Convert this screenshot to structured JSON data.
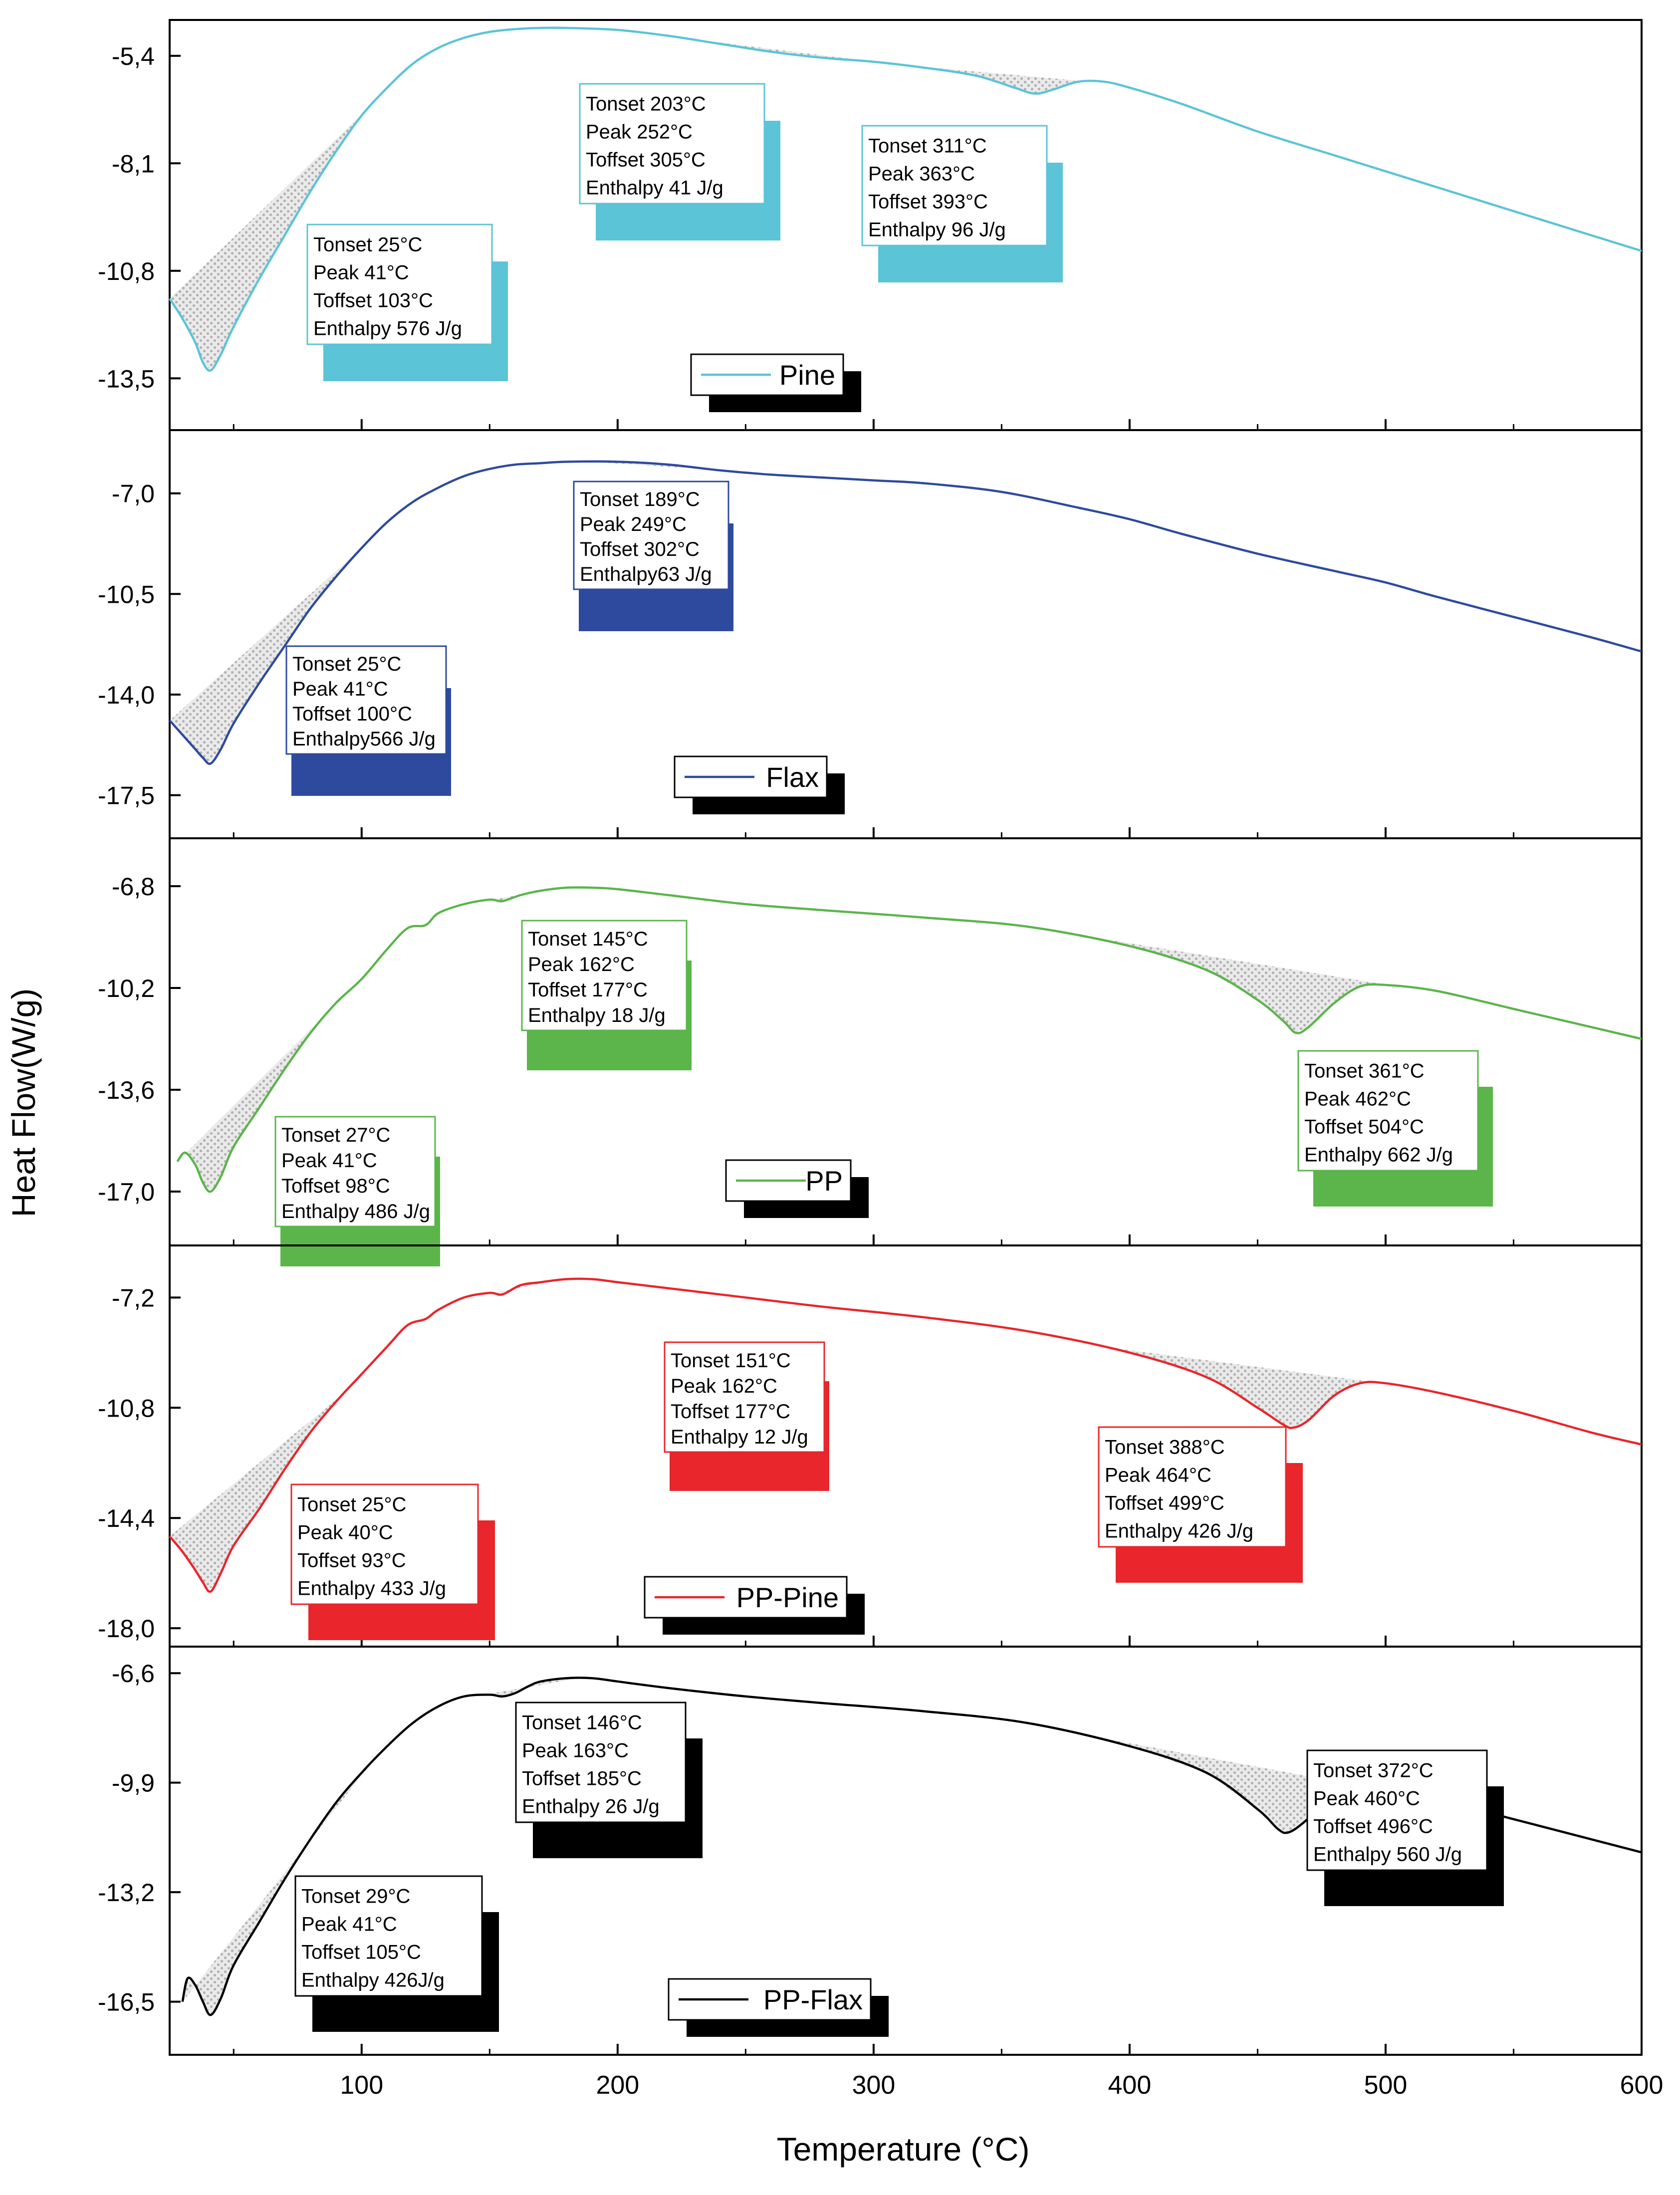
{
  "chart_data": {
    "type": "line",
    "xlabel": "Temperature (°C)",
    "ylabel": "Heat Flow(W/g)",
    "xlim": [
      25,
      600
    ],
    "xticks": [
      100,
      200,
      300,
      400,
      500,
      600
    ],
    "panels": [
      {
        "name": "Pine",
        "color": "#5bc4d6",
        "ylim": [
          -14.8,
          -4.5
        ],
        "yticks": [
          -5.4,
          -8.1,
          -10.8,
          -13.5
        ],
        "yticklabels": [
          "-5,4",
          "-8,1",
          "-10,8",
          "-13,5"
        ],
        "x": [
          25,
          30,
          35,
          38,
          41,
          45,
          50,
          60,
          70,
          80,
          90,
          100,
          110,
          120,
          130,
          140,
          150,
          160,
          170,
          180,
          200,
          220,
          240,
          260,
          280,
          300,
          320,
          340,
          355,
          363,
          370,
          380,
          390,
          400,
          420,
          450,
          480,
          500,
          520,
          550,
          580,
          600
        ],
        "y": [
          -11.5,
          -12.0,
          -12.6,
          -13.1,
          -13.3,
          -12.9,
          -12.2,
          -11.0,
          -9.9,
          -8.8,
          -7.8,
          -6.9,
          -6.2,
          -5.6,
          -5.2,
          -4.95,
          -4.8,
          -4.73,
          -4.7,
          -4.7,
          -4.75,
          -4.9,
          -5.1,
          -5.3,
          -5.45,
          -5.55,
          -5.7,
          -5.9,
          -6.2,
          -6.35,
          -6.25,
          -6.05,
          -6.05,
          -6.2,
          -6.6,
          -7.3,
          -7.9,
          -8.3,
          -8.7,
          -9.3,
          -9.9,
          -10.3
        ],
        "legend": "Pine",
        "annotations": [
          {
            "lines": [
              "Tonset 25°C",
              "Peak 41°C",
              "Toffset 103°C",
              "Enthalpy 576 J/g"
            ]
          },
          {
            "lines": [
              "Tonset 203°C",
              "Peak 252°C",
              "Toffset 305°C",
              "Enthalpy 41 J/g"
            ]
          },
          {
            "lines": [
              "Tonset 311°C",
              "Peak 363°C",
              "Toffset 393°C",
              "Enthalpy 96 J/g"
            ]
          }
        ]
      },
      {
        "name": "Flax",
        "color": "#2e4a9e",
        "ylim": [
          -19.0,
          -4.8
        ],
        "yticks": [
          -7.0,
          -10.5,
          -14.0,
          -17.5
        ],
        "yticklabels": [
          "-7,0",
          "-10,5",
          "-14,0",
          "-17,5"
        ],
        "x": [
          25,
          30,
          35,
          38,
          41,
          45,
          50,
          60,
          70,
          80,
          90,
          100,
          110,
          120,
          130,
          140,
          150,
          160,
          170,
          180,
          200,
          220,
          240,
          260,
          280,
          300,
          320,
          350,
          380,
          400,
          420,
          450,
          480,
          500,
          520,
          550,
          580,
          600
        ],
        "y": [
          -14.9,
          -15.4,
          -15.9,
          -16.2,
          -16.4,
          -15.9,
          -15.0,
          -13.6,
          -12.3,
          -11.0,
          -9.9,
          -8.9,
          -8.0,
          -7.3,
          -6.8,
          -6.4,
          -6.15,
          -6.0,
          -5.95,
          -5.9,
          -5.9,
          -6.0,
          -6.2,
          -6.35,
          -6.45,
          -6.55,
          -6.65,
          -6.95,
          -7.5,
          -7.9,
          -8.4,
          -9.1,
          -9.7,
          -10.1,
          -10.6,
          -11.3,
          -12.0,
          -12.5
        ],
        "legend": "Flax",
        "annotations": [
          {
            "lines": [
              "Tonset 25°C",
              "Peak 41°C",
              "Toffset 100°C",
              "Enthalpy566 J/g"
            ]
          },
          {
            "lines": [
              "Tonset 189°C",
              "Peak 249°C",
              "Toffset 302°C",
              "Enthalpy63 J/g"
            ]
          }
        ]
      },
      {
        "name": "PP",
        "color": "#5bb54a",
        "ylim": [
          -18.8,
          -5.2
        ],
        "yticks": [
          -6.8,
          -10.2,
          -13.6,
          -17.0
        ],
        "yticklabels": [
          "-6,8",
          "-10,2",
          "-13,6",
          "-17,0"
        ],
        "x": [
          28,
          31,
          35,
          38,
          41,
          45,
          50,
          60,
          70,
          80,
          90,
          100,
          110,
          118,
          125,
          130,
          140,
          150,
          155,
          162,
          170,
          180,
          190,
          200,
          220,
          250,
          280,
          320,
          360,
          400,
          430,
          450,
          460,
          465,
          470,
          480,
          490,
          500,
          520,
          550,
          580,
          600
        ],
        "y": [
          -16.0,
          -15.7,
          -16.1,
          -16.7,
          -17.0,
          -16.5,
          -15.5,
          -14.2,
          -12.9,
          -11.7,
          -10.7,
          -9.9,
          -8.9,
          -8.2,
          -8.1,
          -7.7,
          -7.4,
          -7.25,
          -7.3,
          -7.1,
          -6.95,
          -6.85,
          -6.85,
          -6.9,
          -7.1,
          -7.4,
          -7.6,
          -7.85,
          -8.15,
          -8.8,
          -9.6,
          -10.6,
          -11.3,
          -11.7,
          -11.5,
          -10.7,
          -10.15,
          -10.1,
          -10.3,
          -10.9,
          -11.5,
          -11.9
        ],
        "legend": "PP",
        "annotations": [
          {
            "lines": [
              "Tonset 27°C",
              "Peak 41°C",
              "Toffset 98°C",
              "Enthalpy 486 J/g"
            ]
          },
          {
            "lines": [
              "Tonset 145°C",
              "Peak 162°C",
              "Toffset 177°C",
              "Enthalpy 18 J/g"
            ]
          },
          {
            "lines": [
              "Tonset 361°C",
              "Peak 462°C",
              "Toffset 504°C",
              "Enthalpy 662 J/g"
            ]
          }
        ]
      },
      {
        "name": "PP-Pine",
        "color": "#e8262b",
        "ylim": [
          -18.6,
          -5.5
        ],
        "yticks": [
          -7.2,
          -10.8,
          -14.4,
          -18.0
        ],
        "yticklabels": [
          "-7,2",
          "-10,8",
          "-14,4",
          "-18,0"
        ],
        "x": [
          25,
          30,
          35,
          38,
          41,
          45,
          50,
          60,
          70,
          80,
          90,
          100,
          110,
          118,
          125,
          130,
          140,
          150,
          155,
          162,
          170,
          180,
          190,
          200,
          220,
          250,
          280,
          320,
          360,
          400,
          430,
          450,
          460,
          464,
          470,
          480,
          490,
          500,
          520,
          550,
          580,
          600
        ],
        "y": [
          -15.0,
          -15.5,
          -16.1,
          -16.5,
          -16.8,
          -16.2,
          -15.3,
          -14.1,
          -12.8,
          -11.6,
          -10.6,
          -9.7,
          -8.8,
          -8.1,
          -7.9,
          -7.6,
          -7.2,
          -7.05,
          -7.1,
          -6.8,
          -6.7,
          -6.6,
          -6.6,
          -6.7,
          -6.9,
          -7.2,
          -7.5,
          -7.85,
          -8.3,
          -9.0,
          -9.8,
          -10.8,
          -11.35,
          -11.45,
          -11.2,
          -10.4,
          -10.0,
          -10.0,
          -10.3,
          -10.9,
          -11.6,
          -12.0
        ],
        "legend": "PP-Pine",
        "annotations": [
          {
            "lines": [
              "Tonset 25°C",
              "Peak 40°C",
              "Toffset 93°C",
              "Enthalpy 433 J/g"
            ]
          },
          {
            "lines": [
              "Tonset 151°C",
              "Peak 162°C",
              "Toffset 177°C",
              "Enthalpy 12 J/g"
            ]
          },
          {
            "lines": [
              "Tonset 388°C",
              "Peak 464°C",
              "Toffset 499°C",
              "Enthalpy 426 J/g"
            ]
          }
        ]
      },
      {
        "name": "PP-Flax",
        "color": "#000000",
        "ylim": [
          -18.1,
          -5.8
        ],
        "yticks": [
          -6.6,
          -9.9,
          -13.2,
          -16.5
        ],
        "yticklabels": [
          "-6,6",
          "-9,9",
          "-13,2",
          "-16,5"
        ],
        "x": [
          30,
          32,
          35,
          38,
          41,
          45,
          50,
          60,
          70,
          80,
          90,
          100,
          110,
          120,
          130,
          140,
          150,
          155,
          160,
          165,
          170,
          180,
          190,
          200,
          220,
          250,
          280,
          320,
          360,
          400,
          430,
          450,
          458,
          462,
          468,
          478,
          490,
          500,
          520,
          550,
          580,
          600
        ],
        "y": [
          -16.5,
          -15.8,
          -16.0,
          -16.5,
          -16.9,
          -16.4,
          -15.4,
          -14.1,
          -12.8,
          -11.6,
          -10.5,
          -9.6,
          -8.8,
          -8.1,
          -7.6,
          -7.3,
          -7.25,
          -7.3,
          -7.2,
          -7.0,
          -6.85,
          -6.75,
          -6.75,
          -6.85,
          -7.05,
          -7.3,
          -7.5,
          -7.75,
          -8.1,
          -8.8,
          -9.6,
          -10.7,
          -11.3,
          -11.4,
          -11.1,
          -10.4,
          -10.05,
          -10.1,
          -10.4,
          -11.0,
          -11.6,
          -12.0
        ],
        "legend": "PP-Flax",
        "annotations": [
          {
            "lines": [
              "Tonset 29°C",
              "Peak 41°C",
              "Toffset 105°C",
              "Enthalpy  426J/g"
            ]
          },
          {
            "lines": [
              "Tonset 146°C",
              "Peak 163°C",
              "Toffset 185°C",
              "Enthalpy 26 J/g"
            ]
          },
          {
            "lines": [
              "Tonset 372°C",
              "Peak 460°C",
              "Toffset 496°C",
              "Enthalpy 560 J/g"
            ]
          }
        ]
      }
    ]
  }
}
